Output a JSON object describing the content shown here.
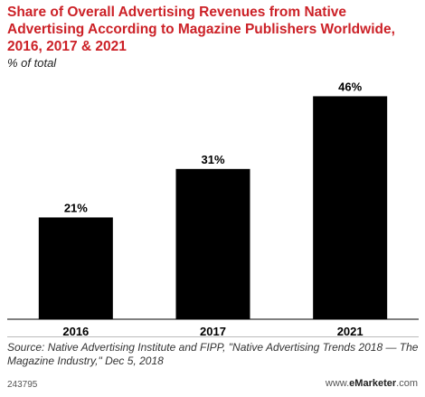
{
  "chart_data": {
    "type": "bar",
    "title": "Share of Overall Advertising Revenues from Native Advertising According to Magazine Publishers Worldwide, 2016, 2017 & 2021",
    "subtitle": "% of total",
    "categories": [
      "2016",
      "2017",
      "2021"
    ],
    "values": [
      21,
      31,
      46
    ],
    "data_labels": [
      "21%",
      "31%",
      "46%"
    ],
    "ylim": [
      0,
      50
    ],
    "xlabel": "",
    "ylabel": "",
    "grid": false,
    "legend": "none",
    "bar_color": "#000000"
  },
  "source": "Source: Native Advertising Institute and FIPP, \"Native Advertising Trends 2018 — The Magazine Industry,\" Dec 5, 2018",
  "footer": {
    "id": "243795",
    "brand_prefix": "www.",
    "brand_bold": "eMarketer",
    "brand_suffix": ".com"
  },
  "colors": {
    "title": "#cc2127"
  }
}
